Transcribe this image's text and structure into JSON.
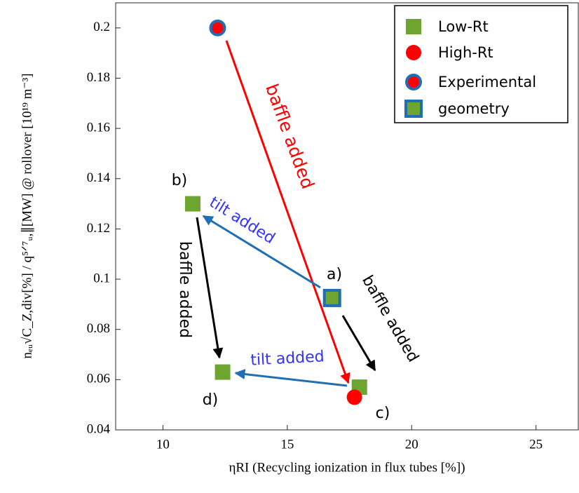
{
  "chart_data": {
    "type": "scatter",
    "xlabel": "ηRI (Recycling ionization in flux tubes [%])",
    "ylabel": "nₑᵤ√C_Z,div[%] / q⁵ᐟ⁷ᵤ,∥[MW]  @ rollover [10¹⁹ m⁻³]",
    "xlim": [
      8.1,
      26.7
    ],
    "xticks": [
      10,
      15,
      20,
      25
    ],
    "ylim": [
      0.04,
      0.21
    ],
    "yticks": [
      0.04,
      0.06,
      0.08,
      0.1,
      0.12,
      0.14,
      0.16,
      0.18,
      0.2
    ],
    "legend": "upper right",
    "series": [
      {
        "name": "Low-Rt",
        "marker": "square",
        "color": "#6ea531",
        "x": [
          11.2,
          12.4,
          17.9
        ],
        "values": [
          0.13,
          0.063,
          0.057
        ]
      },
      {
        "name": "High-Rt",
        "marker": "circle",
        "color": "#ff0000",
        "x": [
          17.7
        ],
        "values": [
          0.053
        ]
      },
      {
        "name": "Experimental",
        "marker": "circle",
        "color": "#ff0000",
        "edgecolor": "#1f6fb4",
        "x": [
          12.2
        ],
        "values": [
          0.2
        ]
      },
      {
        "name": "geometry",
        "marker": "square",
        "color": "#6ea531",
        "edgecolor": "#1f6fb4",
        "x": [
          16.8
        ],
        "values": [
          0.0925
        ]
      }
    ],
    "annotations": [
      "baffle added",
      "tilt added",
      "tilt added",
      "baffle added",
      "baffle added",
      "a)",
      "b)",
      "c)",
      "d)"
    ]
  }
}
